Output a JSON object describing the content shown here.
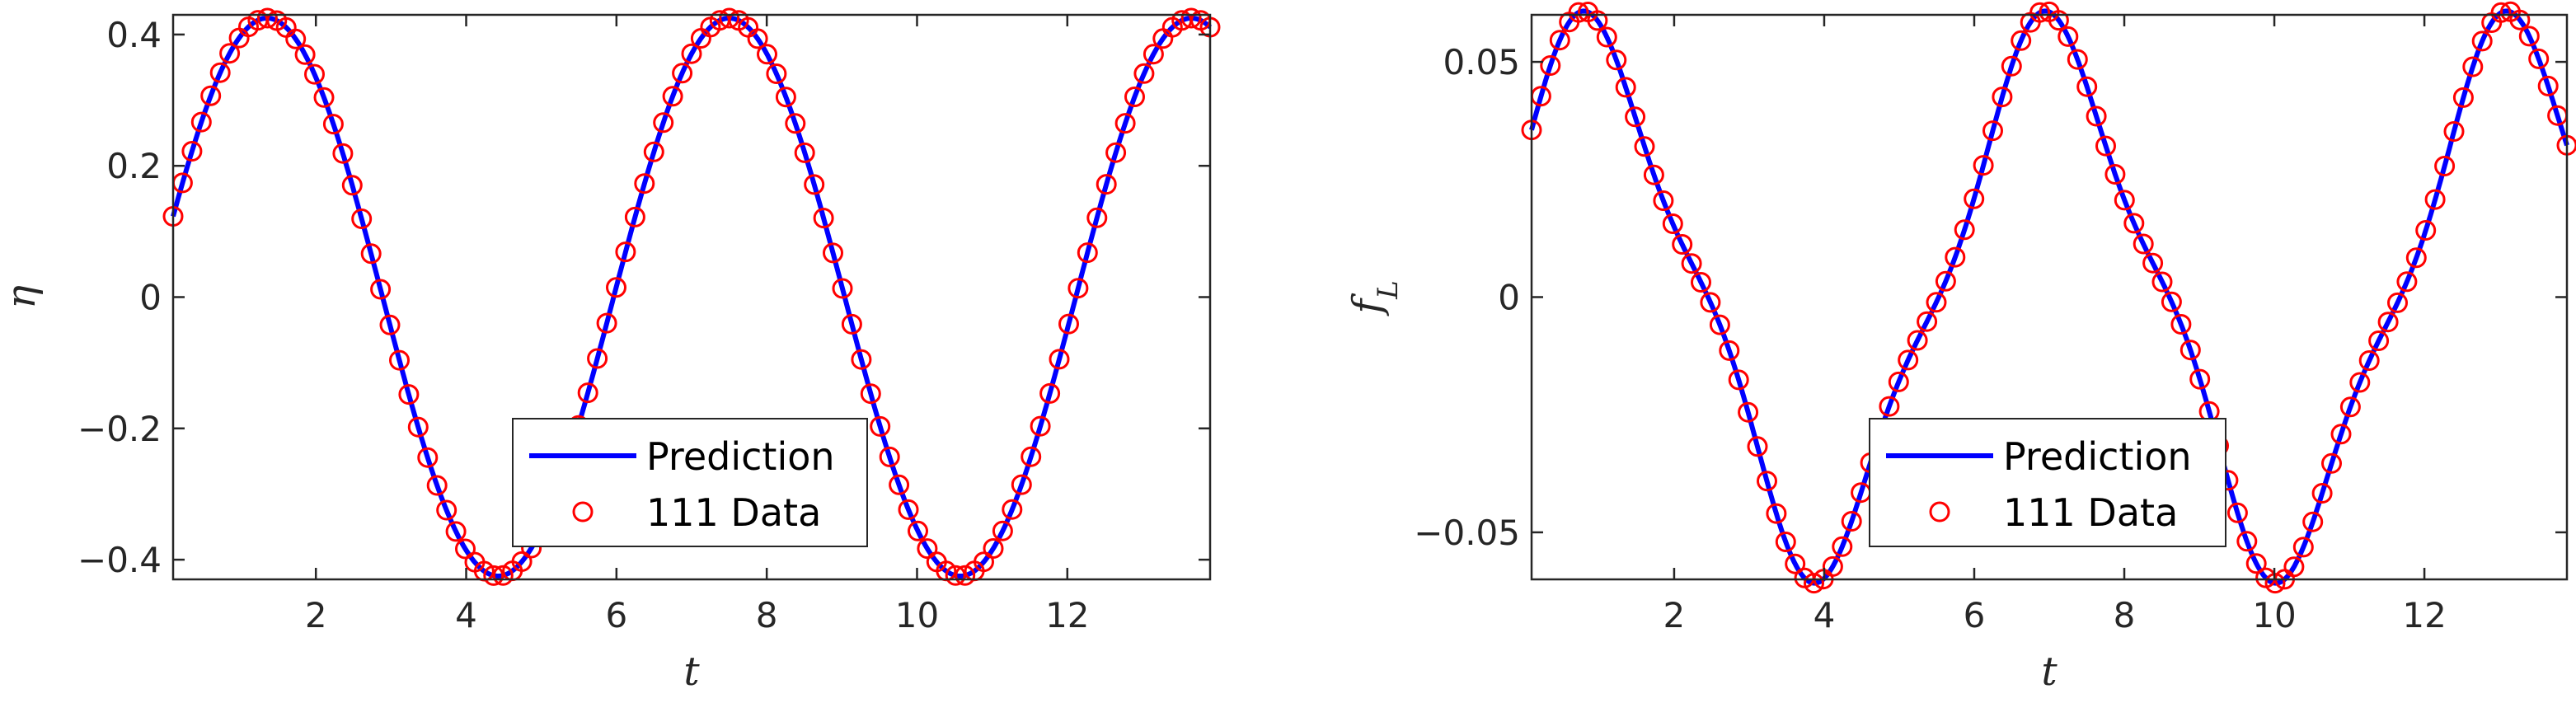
{
  "colors": {
    "prediction": "#0000ff",
    "data": "#ff0000",
    "axis": "#262626"
  },
  "chart_data": [
    {
      "type": "line",
      "xlabel": "t",
      "ylabel": "η",
      "xlim": [
        0.1,
        13.9
      ],
      "ylim": [
        -0.43,
        0.43
      ],
      "xticks": [
        2,
        4,
        6,
        8,
        10,
        12
      ],
      "xtick_labels": [
        "2",
        "4",
        "6",
        "8",
        "10",
        "12"
      ],
      "yticks": [
        -0.4,
        -0.2,
        0,
        0.2,
        0.4
      ],
      "ytick_labels": [
        "−0.4",
        "−0.2",
        "0",
        "0.2",
        "0.4"
      ],
      "legend": {
        "position": "bottom-center",
        "entries": [
          "Prediction",
          "111 Data"
        ]
      },
      "curve": {
        "kind": "sine",
        "amplitude": 0.425,
        "period": 6.15,
        "phase_peak_t": 1.35,
        "t_start": 0.1,
        "t_end": 13.9
      },
      "series": [
        {
          "name": "Prediction",
          "style": "line"
        },
        {
          "name": "111 Data",
          "style": "circle-markers",
          "count": 111
        }
      ]
    },
    {
      "type": "line",
      "xlabel": "t",
      "ylabel": "f_L",
      "xlim": [
        0.1,
        13.9
      ],
      "ylim": [
        -0.06,
        0.06
      ],
      "xticks": [
        2,
        4,
        6,
        8,
        10,
        12
      ],
      "xtick_labels": [
        "2",
        "4",
        "6",
        "8",
        "10",
        "12"
      ],
      "yticks": [
        -0.05,
        0,
        0.05
      ],
      "ytick_labels": [
        "−0.05",
        "0",
        "0.05"
      ],
      "legend": {
        "position": "bottom-center",
        "entries": [
          "Prediction",
          "111 Data"
        ]
      },
      "curve": {
        "kind": "sine-with-harmonic",
        "amplitude": 0.058,
        "period": 6.15,
        "phase_peak_t": 0.85,
        "harmonic_amplitude": 0.008,
        "harmonic_phase": 0.3,
        "t_start": 0.1,
        "t_end": 13.9
      },
      "series": [
        {
          "name": "Prediction",
          "style": "line"
        },
        {
          "name": "111 Data",
          "style": "circle-markers",
          "count": 111
        }
      ]
    }
  ]
}
